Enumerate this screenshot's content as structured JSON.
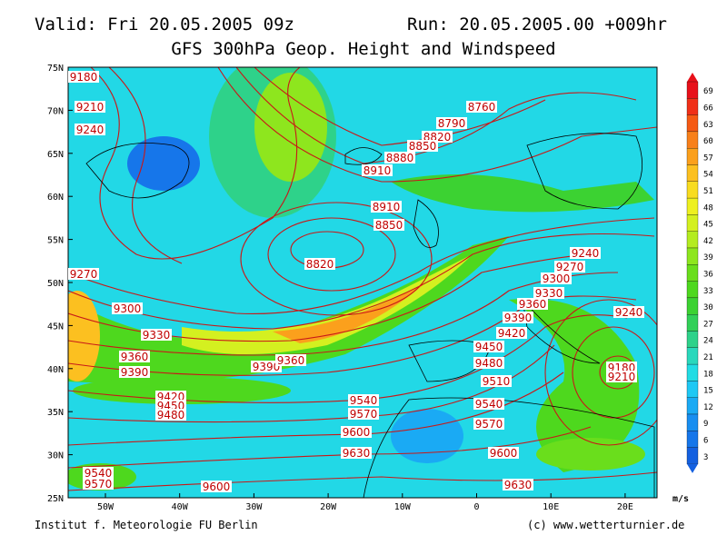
{
  "header": {
    "valid": "Valid: Fri 20.05.2005 09z",
    "run": "Run: 20.05.2005.00 +009hr",
    "title": "GFS 300hPa Geop. Height and Windspeed"
  },
  "lat_labels": [
    "75N",
    "70N",
    "65N",
    "60N",
    "55N",
    "50N",
    "45N",
    "40N",
    "35N",
    "30N",
    "25N"
  ],
  "lon_labels": [
    "50W",
    "40W",
    "30W",
    "20W",
    "10W",
    "0",
    "10E",
    "20E"
  ],
  "colorbar": {
    "unit": "m/s",
    "levels": [
      {
        "value": 69,
        "color": "#e8101a"
      },
      {
        "value": 66,
        "color": "#f03018"
      },
      {
        "value": 63,
        "color": "#f55a14"
      },
      {
        "value": 60,
        "color": "#f8801a"
      },
      {
        "value": 57,
        "color": "#fba01c"
      },
      {
        "value": 54,
        "color": "#fcc020"
      },
      {
        "value": 51,
        "color": "#f8dc20"
      },
      {
        "value": 48,
        "color": "#eef020"
      },
      {
        "value": 45,
        "color": "#d4f020"
      },
      {
        "value": 42,
        "color": "#b4ec20"
      },
      {
        "value": 39,
        "color": "#8ee61e"
      },
      {
        "value": 36,
        "color": "#6ade1c"
      },
      {
        "value": 33,
        "color": "#4ed81e"
      },
      {
        "value": 30,
        "color": "#3cd232"
      },
      {
        "value": 27,
        "color": "#32d058"
      },
      {
        "value": 24,
        "color": "#2ed28a"
      },
      {
        "value": 21,
        "color": "#2ad8bc"
      },
      {
        "value": 18,
        "color": "#22dce4"
      },
      {
        "value": 15,
        "color": "#1ec8f4"
      },
      {
        "value": 12,
        "color": "#1aaaf4"
      },
      {
        "value": 9,
        "color": "#188ef0"
      },
      {
        "value": 6,
        "color": "#1676ea"
      },
      {
        "value": 3,
        "color": "#1460e0"
      }
    ]
  },
  "contour_labels": [
    9180,
    9210,
    9240,
    8760,
    8790,
    8820,
    8850,
    8880,
    8910,
    8910,
    8850,
    8820,
    9270,
    9300,
    9330,
    9360,
    9390,
    9390,
    9360,
    9420,
    9450,
    9480,
    9540,
    9570,
    9600,
    9630,
    9540,
    9570,
    9600,
    9450,
    9480,
    9510,
    9540,
    9570,
    9600,
    9630,
    9420,
    9390,
    9360,
    9330,
    9300,
    9270,
    9240,
    9240,
    9180,
    9210
  ],
  "footer": {
    "left": "Institut f. Meteorologie  FU Berlin",
    "right": "(c) www.wetterturnier.de"
  }
}
